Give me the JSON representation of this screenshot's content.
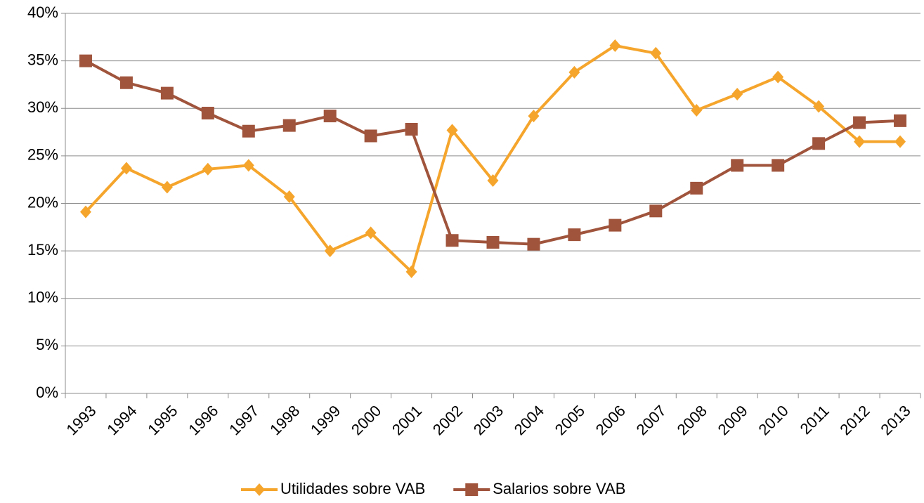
{
  "chart_data": {
    "type": "line",
    "categories": [
      "1993",
      "1994",
      "1995",
      "1996",
      "1997",
      "1998",
      "1999",
      "2000",
      "2001",
      "2002",
      "2003",
      "2004",
      "2005",
      "2006",
      "2007",
      "2008",
      "2009",
      "2010",
      "2011",
      "2012",
      "2013"
    ],
    "series": [
      {
        "name": "Utilidades sobre VAB",
        "color": "#f5a52c",
        "marker": "diamond",
        "values": [
          19.1,
          23.7,
          21.7,
          23.6,
          24.0,
          20.7,
          15.0,
          16.9,
          12.8,
          27.7,
          22.4,
          29.2,
          33.8,
          36.6,
          35.8,
          29.8,
          31.5,
          33.3,
          30.2,
          26.5,
          26.5
        ]
      },
      {
        "name": "Salarios sobre VAB",
        "color": "#a0543c",
        "marker": "square",
        "values": [
          35.0,
          32.7,
          31.6,
          29.5,
          27.6,
          28.2,
          29.2,
          27.1,
          27.8,
          16.1,
          15.9,
          15.7,
          16.7,
          17.7,
          19.2,
          21.6,
          24.0,
          24.0,
          26.3,
          28.5,
          28.7
        ]
      }
    ],
    "ylim": [
      0,
      40
    ],
    "yticks": [
      {
        "value": 0,
        "label": "0%"
      },
      {
        "value": 5,
        "label": "5%"
      },
      {
        "value": 10,
        "label": "10%"
      },
      {
        "value": 15,
        "label": "15%"
      },
      {
        "value": 20,
        "label": "20%"
      },
      {
        "value": 25,
        "label": "25%"
      },
      {
        "value": 30,
        "label": "30%"
      },
      {
        "value": 35,
        "label": "35%"
      },
      {
        "value": 40,
        "label": "40%"
      }
    ],
    "grid": true,
    "legend": "bottom"
  }
}
